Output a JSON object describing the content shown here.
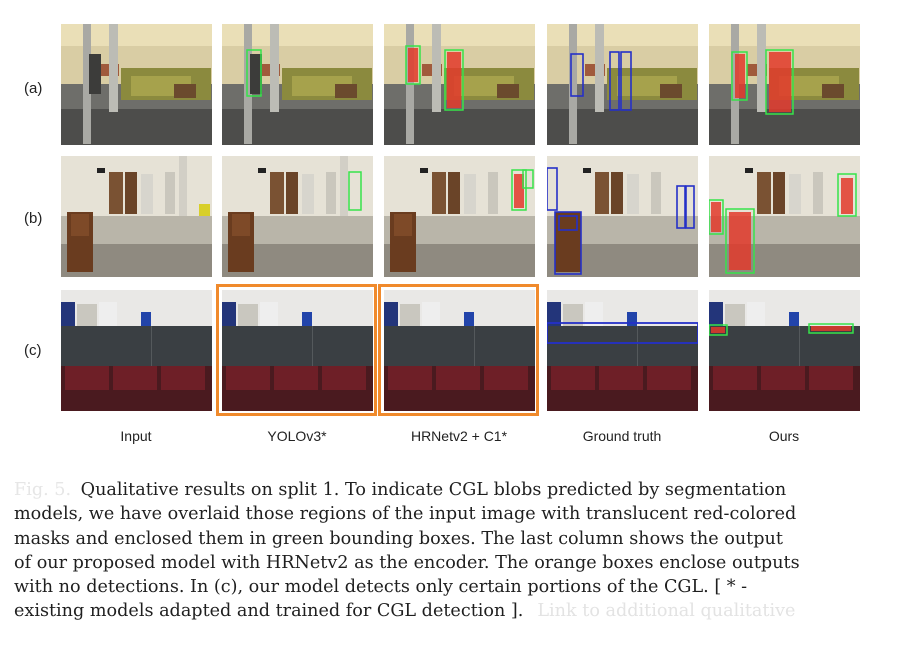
{
  "figure": {
    "row_labels": [
      "(a)",
      "(b)",
      "(c)"
    ],
    "column_labels": [
      "Input",
      "YOLOv3*",
      "HRNetv2 + C1*",
      "Ground truth",
      "Ours"
    ],
    "colors": {
      "prediction_box": "#36e34a",
      "prediction_mask": "#e23a2b",
      "ground_truth_box": "#2530c8",
      "no_detection_box": "#f08a2c"
    }
  },
  "caption": {
    "figure_label": "Fig. 5.",
    "lines": [
      "Qualitative results on split 1. To indicate CGL blobs predicted by segmentation",
      "models, we have overlaid those regions of the input image with translucent red-colored",
      "masks and enclosed them in green bounding boxes. The last column shows the output",
      "of our proposed model with HRNetv2 as the encoder. The orange boxes enclose outputs",
      "with no detections. In (c), our model detects only certain portions of the CGL. [ * -",
      "existing models adapted and trained for CGL detection ]."
    ],
    "trailing_link": "Link to additional qualitative"
  }
}
